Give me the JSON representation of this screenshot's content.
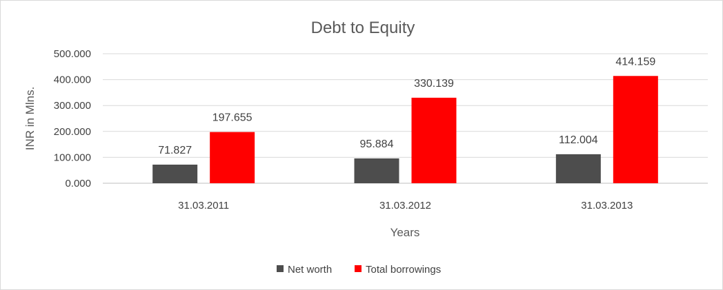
{
  "chart_data": {
    "type": "bar",
    "title": "Debt to Equity",
    "xlabel": "Years",
    "ylabel": "INR in Mlns.",
    "categories": [
      "31.03.2011",
      "31.03.2012",
      "31.03.2013"
    ],
    "ylim": [
      0,
      500
    ],
    "yticks": [
      "0.000",
      "100.000",
      "200.000",
      "300.000",
      "400.000",
      "500.000"
    ],
    "grid": true,
    "legend_position": "bottom",
    "series": [
      {
        "name": "Net worth",
        "color": "#4d4d4d",
        "values": [
          71.827,
          95.884,
          112.004
        ],
        "labels": [
          "71.827",
          "95.884",
          "112.004"
        ]
      },
      {
        "name": "Total borrowings",
        "color": "#ff0000",
        "values": [
          197.655,
          330.139,
          414.159
        ],
        "labels": [
          "197.655",
          "330.139",
          "414.159"
        ]
      }
    ]
  }
}
